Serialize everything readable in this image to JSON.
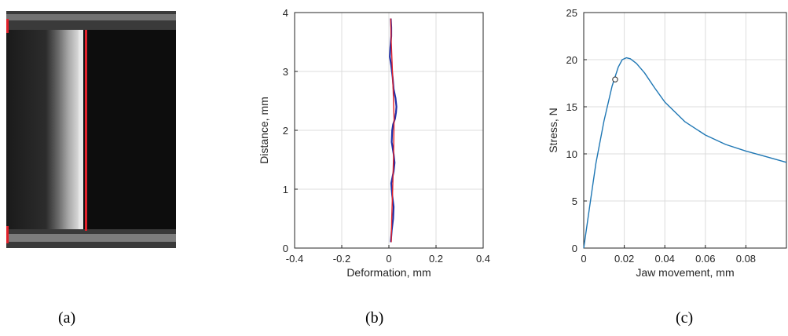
{
  "panel_labels": {
    "a": "(a)",
    "b": "(b)",
    "c": "(c)"
  },
  "colors": {
    "profile_blue": "#1f2fa8",
    "fit_red": "#e0202a",
    "curve_blue": "#1f77b4",
    "grid": "#dcdcdc"
  },
  "chart_data": [
    {
      "type": "line",
      "panel": "b",
      "xlabel": "Deformation, mm",
      "ylabel": "Distance, mm",
      "xlim": [
        -0.4,
        0.4
      ],
      "ylim": [
        0,
        4
      ],
      "xticks": [
        -0.4,
        -0.2,
        0,
        0.2,
        0.4
      ],
      "xtick_labels": [
        "-0.4",
        "-0.2",
        "0",
        "0.2",
        "0.4"
      ],
      "yticks": [
        0,
        1,
        2,
        3,
        4
      ],
      "ytick_labels": [
        "0",
        "1",
        "2",
        "3",
        "4"
      ],
      "grid": true,
      "series": [
        {
          "style": "measured-profile",
          "color": "#1f2fa8",
          "x": [
            0.008,
            0.012,
            0.018,
            0.02,
            0.014,
            0.01,
            0.02,
            0.024,
            0.02,
            0.012,
            0.014,
            0.018,
            0.026,
            0.03,
            0.032,
            0.028,
            0.02,
            0.016,
            0.01,
            0.004,
            0.006,
            0.01,
            0.01,
            0.008
          ],
          "y": [
            0.1,
            0.3,
            0.5,
            0.7,
            0.9,
            1.1,
            1.3,
            1.45,
            1.6,
            1.8,
            2.0,
            2.1,
            2.2,
            2.3,
            2.4,
            2.55,
            2.7,
            2.9,
            3.1,
            3.25,
            3.4,
            3.6,
            3.75,
            3.9
          ]
        },
        {
          "style": "fit",
          "color": "#e0202a",
          "x": [
            0.01,
            0.012,
            0.016,
            0.02,
            0.022,
            0.018,
            0.014,
            0.01,
            0.008
          ],
          "y": [
            0.1,
            0.5,
            1.0,
            1.6,
            2.2,
            2.7,
            3.1,
            3.5,
            3.9
          ]
        }
      ]
    },
    {
      "type": "line",
      "panel": "c",
      "xlabel": "Jaw movement, mm",
      "ylabel": "Stress, N",
      "xlim": [
        0,
        0.1
      ],
      "ylim": [
        0,
        25
      ],
      "xticks": [
        0,
        0.02,
        0.04,
        0.06,
        0.08
      ],
      "xtick_labels": [
        "0",
        "0.02",
        "0.04",
        "0.06",
        "0.08"
      ],
      "yticks": [
        0,
        5,
        10,
        15,
        20,
        25
      ],
      "ytick_labels": [
        "0",
        "5",
        "10",
        "15",
        "20",
        "25"
      ],
      "grid": true,
      "series": [
        {
          "color": "#1f77b4",
          "x": [
            0,
            0.003,
            0.006,
            0.01,
            0.014,
            0.017,
            0.019,
            0.021,
            0.023,
            0.026,
            0.03,
            0.035,
            0.04,
            0.05,
            0.06,
            0.07,
            0.08,
            0.09,
            0.1
          ],
          "y": [
            0,
            4.5,
            9,
            13.5,
            17.2,
            19.2,
            20.0,
            20.2,
            20.1,
            19.6,
            18.6,
            17.0,
            15.5,
            13.4,
            12.0,
            11.0,
            10.3,
            9.7,
            9.1
          ]
        }
      ],
      "marker": {
        "x": 0.0155,
        "y": 17.9,
        "shape": "open-circle"
      }
    }
  ]
}
